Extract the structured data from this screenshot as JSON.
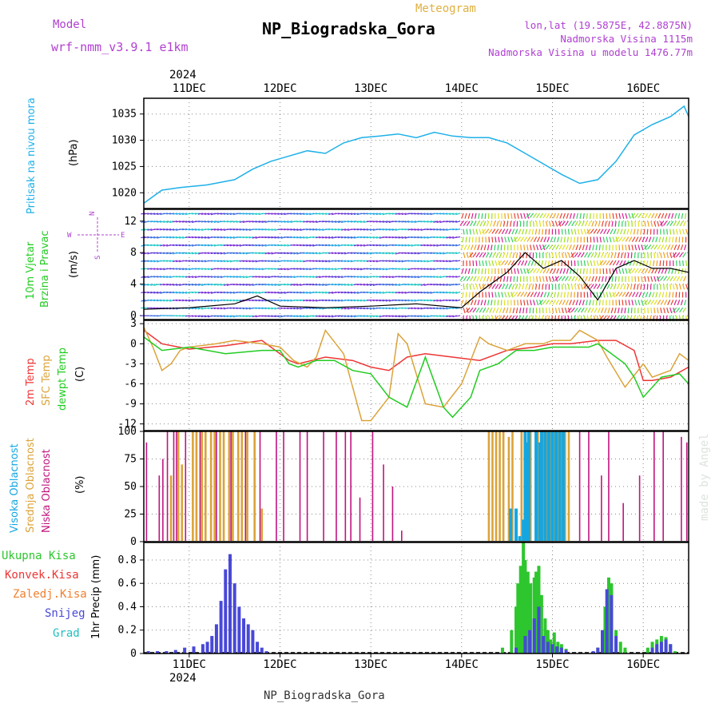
{
  "header": {
    "model_label": "Model",
    "model_name": "wrf-nmm_v3.9.1 e1km",
    "meteogram_label": "Meteogram",
    "title": "NP_Biogradska_Gora",
    "coords": "lon,lat (19.5875E, 42.8875N)",
    "elevation": "Nadmorska Visina 1115m",
    "model_elevation": "Nadmorska Visina u modelu 1476.77m",
    "footer": "NP_Biogradska_Gora",
    "watermark": "made by Angel"
  },
  "time_axis": {
    "year": "2024",
    "day_labels": [
      "11DEC",
      "12DEC",
      "13DEC",
      "14DEC",
      "15DEC",
      "16DEC"
    ],
    "day_index": [
      0,
      1,
      2,
      3,
      4,
      5
    ],
    "range_days": [
      -0.5,
      5.5
    ]
  },
  "colors": {
    "pressure": "#1eb0e8",
    "temp_2m": "#ee3535",
    "temp_sfc": "#dba33a",
    "dewpoint": "#22cc22",
    "cloud_high": "#15a6e0",
    "cloud_mid": "#dba33a",
    "cloud_low": "#c0157e",
    "precip_total": "#2ec62e",
    "precip_conv": "#ee3535",
    "precip_frozen": "#f08030",
    "precip_snow": "#4848d8",
    "precip_grad": "#20c0c0",
    "text_purple": "#b040d0",
    "text_gold": "#e0b040"
  },
  "chart_data": [
    {
      "type": "line",
      "panel": "pressure",
      "ylabel_1": "Pritisak na nivou mora",
      "unit": "(hPa)",
      "ylim": [
        1017,
        1038
      ],
      "yticks": [
        1020,
        1025,
        1030,
        1035
      ],
      "series": [
        {
          "x": [
            -0.5,
            -0.3,
            -0.1,
            0.2,
            0.5,
            0.7,
            0.9,
            1.1,
            1.3,
            1.5,
            1.7,
            1.9,
            2.1,
            2.3,
            2.5,
            2.7,
            2.9,
            3.1,
            3.3,
            3.5,
            3.7,
            3.9,
            4.1,
            4.3,
            4.5,
            4.7,
            4.9,
            5.1,
            5.3,
            5.45,
            5.5
          ],
          "y": [
            1018,
            1020.5,
            1021,
            1021.5,
            1022.5,
            1024.5,
            1026,
            1027,
            1028,
            1027.5,
            1029.5,
            1030.5,
            1030.8,
            1031.2,
            1030.5,
            1031.5,
            1030.8,
            1030.5,
            1030.5,
            1029.5,
            1027.5,
            1025.5,
            1023.5,
            1021.8,
            1022.5,
            1026,
            1031,
            1033,
            1034.5,
            1036.5,
            1034.5
          ]
        }
      ]
    },
    {
      "type": "line",
      "panel": "wind",
      "ylabel_1": "10m Vjetar",
      "ylabel_2": "Brzina i Pravac",
      "unit": "(m/s)",
      "compass": [
        "N",
        "W",
        "E",
        "S"
      ],
      "ylim": [
        -0.5,
        13.5
      ],
      "yticks": [
        0,
        4,
        8,
        12
      ],
      "series": [
        {
          "name": "speed",
          "x": [
            -0.5,
            0,
            0.5,
            0.75,
            1,
            1.5,
            2,
            2.5,
            3,
            3.2,
            3.5,
            3.7,
            3.9,
            4.1,
            4.3,
            4.5,
            4.7,
            4.9,
            5.1,
            5.3,
            5.5
          ],
          "y": [
            0.8,
            1,
            1.5,
            2.5,
            1.2,
            1,
            1.2,
            1.5,
            1,
            3,
            5.5,
            8,
            6,
            7,
            5,
            2,
            6,
            7,
            6,
            6,
            5.5
          ]
        }
      ]
    },
    {
      "type": "line",
      "panel": "temperature",
      "ylabel_1": "2m Temp",
      "ylabel_2": "SFC Temp",
      "ylabel_3": "dewpt Temp",
      "unit": "(C)",
      "ylim": [
        -13,
        3.5
      ],
      "yticks": [
        3,
        0,
        -3,
        -6,
        -9,
        -12
      ],
      "series": [
        {
          "name": "2m Temp",
          "x": [
            -0.5,
            -0.3,
            0,
            0.4,
            0.8,
            1.1,
            1.2,
            1.5,
            1.8,
            2,
            2.2,
            2.4,
            2.6,
            2.9,
            3.2,
            3.5,
            3.8,
            4,
            4.2,
            4.5,
            4.7,
            4.9,
            5,
            5.1,
            5.3,
            5.5
          ],
          "y": [
            2,
            0,
            -0.8,
            -0.3,
            0.5,
            -2.5,
            -3,
            -2,
            -2.5,
            -3.5,
            -4,
            -2,
            -1.5,
            -2,
            -2.5,
            -1,
            -0.5,
            0,
            0,
            0.5,
            0.5,
            -1,
            -5.5,
            -5.5,
            -5,
            -3.5
          ]
        },
        {
          "name": "SFC Temp",
          "x": [
            -0.5,
            -0.4,
            -0.3,
            -0.2,
            -0.1,
            0,
            0.3,
            0.5,
            0.8,
            1,
            1.15,
            1.3,
            1.4,
            1.5,
            1.7,
            1.9,
            2,
            2.2,
            2.3,
            2.4,
            2.6,
            2.8,
            3,
            3.2,
            3.3,
            3.5,
            3.7,
            3.9,
            4,
            4.2,
            4.3,
            4.5,
            4.6,
            4.8,
            5,
            5.1,
            5.3,
            5.4,
            5.5
          ],
          "y": [
            2.5,
            -0.5,
            -4,
            -3,
            -1,
            -0.5,
            0,
            0.5,
            0,
            -0.5,
            -2.5,
            -3.5,
            -2,
            2,
            -1.5,
            -11.5,
            -11.5,
            -8,
            1.5,
            0,
            -9,
            -9.5,
            -6,
            1,
            0,
            -1,
            0,
            0,
            0.5,
            0.5,
            2,
            0.5,
            -2,
            -6.5,
            -3,
            -5,
            -4,
            -1.5,
            -2.5
          ]
        },
        {
          "name": "dewpt Temp",
          "x": [
            -0.5,
            -0.3,
            0,
            0.4,
            0.8,
            1,
            1.1,
            1.2,
            1.4,
            1.6,
            1.8,
            2,
            2.2,
            2.4,
            2.6,
            2.8,
            2.9,
            3.1,
            3.2,
            3.4,
            3.6,
            3.8,
            4,
            4.2,
            4.4,
            4.5,
            4.6,
            4.8,
            4.9,
            5,
            5.2,
            5.4,
            5.5
          ],
          "y": [
            1,
            -1,
            -0.5,
            -1.5,
            -1,
            -1,
            -3,
            -3.5,
            -2.5,
            -2.5,
            -4,
            -4.5,
            -8,
            -9.5,
            -2,
            -9.5,
            -11,
            -8,
            -4,
            -3,
            -1,
            -1,
            -0.5,
            -0.5,
            -0.5,
            0,
            -1,
            -3,
            -5,
            -8,
            -5,
            -4.5,
            -6
          ]
        }
      ]
    },
    {
      "type": "bar",
      "panel": "clouds",
      "ylabel_1": "Visoka Oblacnost",
      "ylabel_2": "Srednja Oblacnost",
      "ylabel_3": "Niska Oblacnost",
      "unit": "(%)",
      "ylim": [
        0,
        100
      ],
      "yticks": [
        0,
        25,
        50,
        75,
        100
      ],
      "series": [
        {
          "name": "Niska Oblacnost",
          "x": [
            -0.47,
            -0.33,
            -0.29,
            -0.24,
            -0.17,
            -0.14,
            -0.04,
            0.12,
            0.3,
            0.46,
            0.62,
            0.78,
            0.96,
            1.04,
            1.22,
            1.3,
            1.48,
            1.62,
            1.72,
            1.78,
            1.88,
            2.02,
            2.14,
            2.24,
            2.34,
            4.04,
            4.3,
            4.4,
            4.54,
            4.62,
            4.78,
            4.96,
            5.12,
            5.22,
            5.42,
            5.48
          ],
          "y": [
            90,
            60,
            75,
            100,
            100,
            100,
            100,
            100,
            100,
            100,
            100,
            100,
            100,
            100,
            100,
            100,
            100,
            100,
            100,
            100,
            40,
            100,
            70,
            50,
            10,
            95,
            100,
            100,
            60,
            100,
            35,
            60,
            100,
            100,
            95,
            90
          ]
        },
        {
          "name": "Srednja Oblacnost",
          "x": [
            -0.2,
            -0.12,
            -0.08,
            0.04,
            0.08,
            0.14,
            0.18,
            0.24,
            0.28,
            0.34,
            0.38,
            0.44,
            0.48,
            0.54,
            0.58,
            0.64,
            0.72,
            0.8,
            3.3,
            3.34,
            3.38,
            3.42,
            3.46,
            3.52,
            3.56,
            3.66,
            3.76,
            3.84,
            3.9,
            3.94,
            3.98,
            4.02,
            4.06,
            4.1,
            4.14,
            4.18
          ],
          "y": [
            60,
            100,
            70,
            100,
            100,
            100,
            100,
            100,
            100,
            100,
            100,
            100,
            100,
            100,
            100,
            100,
            100,
            30,
            100,
            100,
            100,
            100,
            100,
            95,
            100,
            100,
            100,
            100,
            100,
            100,
            100,
            100,
            100,
            100,
            100,
            100
          ]
        },
        {
          "name": "Visoka Oblacnost",
          "x": [
            3.54,
            3.6,
            3.64,
            3.68,
            3.7,
            3.72,
            3.74,
            3.82,
            3.86,
            3.88,
            3.92,
            3.96,
            4.0,
            4.04,
            4.08,
            4.12
          ],
          "y": [
            30,
            30,
            5,
            20,
            100,
            90,
            100,
            100,
            90,
            100,
            100,
            100,
            100,
            100,
            100,
            100
          ]
        }
      ]
    },
    {
      "type": "bar",
      "panel": "precip",
      "legend": [
        "Ukupna Kisa",
        "Konvek.Kisa",
        "Zaledj.Kisa",
        "Snijeg",
        "Grad"
      ],
      "ylabel_1": "1hr Precip (mm)",
      "ylim": [
        0,
        0.95
      ],
      "yticks": [
        0,
        0.2,
        0.4,
        0.6,
        0.8
      ],
      "series": [
        {
          "name": "Ukupna Kisa",
          "x": [
            3.45,
            3.55,
            3.6,
            3.62,
            3.65,
            3.68,
            3.7,
            3.73,
            3.76,
            3.8,
            3.82,
            3.85,
            3.88,
            3.92,
            3.95,
            3.98,
            4.02,
            4.06,
            4.1,
            4.15,
            4.5,
            4.55,
            4.58,
            4.62,
            4.65,
            4.7,
            4.75,
            4.8,
            5.05,
            5.1,
            5.15,
            5.2,
            5.25,
            5.3,
            5.35
          ],
          "y": [
            0.05,
            0.2,
            0.4,
            0.6,
            0.75,
            0.95,
            0.8,
            0.7,
            0.6,
            0.65,
            0.7,
            0.75,
            0.5,
            0.3,
            0.2,
            0.12,
            0.18,
            0.1,
            0.08,
            0.04,
            0.05,
            0.1,
            0.4,
            0.65,
            0.6,
            0.2,
            0.1,
            0.05,
            0.05,
            0.1,
            0.12,
            0.15,
            0.14,
            0.08,
            0.02
          ]
        },
        {
          "name": "Snijeg",
          "x": [
            -0.45,
            -0.35,
            -0.25,
            -0.15,
            -0.05,
            0.05,
            0.15,
            0.2,
            0.25,
            0.3,
            0.35,
            0.4,
            0.45,
            0.5,
            0.55,
            0.6,
            0.65,
            0.7,
            0.75,
            0.8,
            0.85,
            3.6,
            3.7,
            3.75,
            3.8,
            3.85,
            3.9,
            3.95,
            4.0,
            4.05,
            4.1,
            4.15,
            4.45,
            4.5,
            4.55,
            4.6,
            4.65,
            4.7,
            5.1,
            5.15,
            5.2,
            5.25,
            5.3
          ],
          "y": [
            0.02,
            0.02,
            0.02,
            0.03,
            0.05,
            0.06,
            0.08,
            0.1,
            0.15,
            0.25,
            0.45,
            0.72,
            0.85,
            0.6,
            0.4,
            0.3,
            0.25,
            0.2,
            0.1,
            0.05,
            0.02,
            0.05,
            0.15,
            0.2,
            0.3,
            0.4,
            0.15,
            0.1,
            0.08,
            0.06,
            0.05,
            0.03,
            0.02,
            0.05,
            0.2,
            0.55,
            0.5,
            0.15,
            0.05,
            0.08,
            0.1,
            0.12,
            0.08
          ]
        }
      ]
    }
  ]
}
